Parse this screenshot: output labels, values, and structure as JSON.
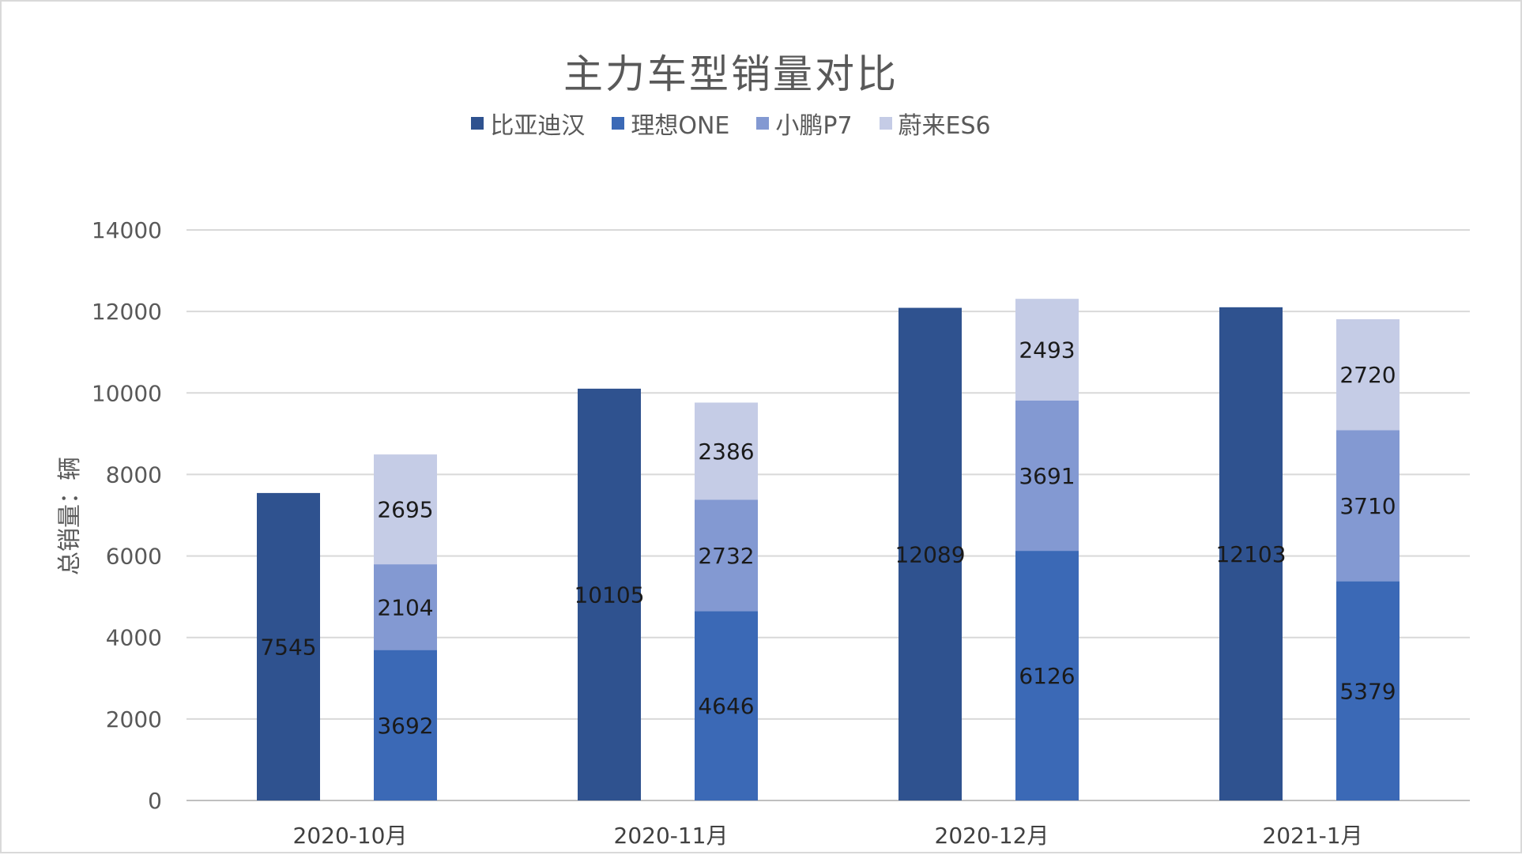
{
  "chart_data": {
    "type": "bar",
    "title": "主力车型销量对比",
    "ylabel": "总销量：辆",
    "xlabel": "",
    "ylim": [
      0,
      14000
    ],
    "yticks": [
      0,
      2000,
      4000,
      6000,
      8000,
      10000,
      12000,
      14000
    ],
    "grid": true,
    "legend_position": "top",
    "categories": [
      "2020-10月",
      "2020-11月",
      "2020-12月",
      "2021-1月"
    ],
    "series": [
      {
        "name": "比亚迪汉",
        "stack": "A",
        "color": "#2f528f",
        "values": [
          7545,
          10105,
          12089,
          12103
        ]
      },
      {
        "name": "理想ONE",
        "stack": "B",
        "color": "#3b69b6",
        "values": [
          3692,
          4646,
          6126,
          5379
        ]
      },
      {
        "name": "小鹏P7",
        "stack": "B",
        "color": "#8399d2",
        "values": [
          2104,
          2732,
          3691,
          3710
        ]
      },
      {
        "name": "蔚来ES6",
        "stack": "B",
        "color": "#c5cce6",
        "values": [
          2695,
          2386,
          2493,
          2720
        ]
      }
    ]
  }
}
